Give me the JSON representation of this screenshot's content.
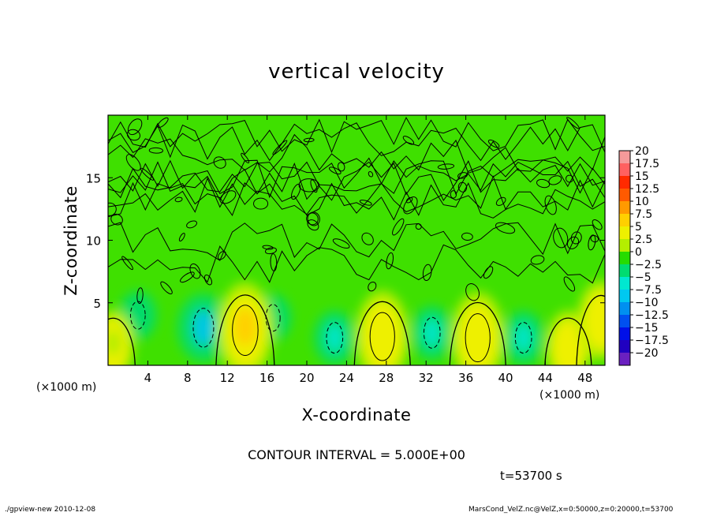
{
  "chart_data": {
    "type": "heatmap",
    "title": "vertical velocity",
    "xlabel": "X-coordinate",
    "ylabel": "Z-coordinate",
    "x_unit_left": "(×1000 m)",
    "x_unit_right": "(×1000 m)",
    "xlim": [
      0,
      50
    ],
    "ylim": [
      0,
      20
    ],
    "x_ticks": [
      4,
      8,
      12,
      16,
      20,
      24,
      28,
      32,
      36,
      40,
      44,
      48
    ],
    "y_ticks": [
      5,
      10,
      15
    ],
    "colorbar": {
      "levels": [
        20,
        17.5,
        15,
        12.5,
        10,
        7.5,
        5,
        2.5,
        0,
        -2.5,
        -5,
        -7.5,
        -10,
        -12.5,
        -15,
        -17.5,
        -20
      ],
      "labels": [
        "20",
        "17.5",
        "15",
        "12.5",
        "10",
        "7.5",
        "5",
        "2.5",
        "0",
        "−2.5",
        "−5",
        "−7.5",
        "−10",
        "−12.5",
        "−15",
        "−17.5",
        "−20"
      ],
      "colors": [
        "#f59a9a",
        "#ff6060",
        "#ff2a00",
        "#ff5a00",
        "#ff9a00",
        "#ffd000",
        "#eef000",
        "#b4ee00",
        "#26dc00",
        "#00dc70",
        "#00e8d0",
        "#00c8f0",
        "#0090f0",
        "#0050f0",
        "#0010e8",
        "#2000c0",
        "#6a20c0"
      ]
    },
    "background_color": "#3fe000",
    "updrafts": [
      {
        "x": 0.5,
        "z": 1.6,
        "w": 3.5
      },
      {
        "x": 13.8,
        "z": 2.8,
        "w": 6.5
      },
      {
        "x": 27.6,
        "z": 2.3,
        "w": 6.0
      },
      {
        "x": 37.2,
        "z": 2.2,
        "w": 6.0
      },
      {
        "x": 46.3,
        "z": 1.4,
        "w": 4.0
      },
      {
        "x": 49.6,
        "z": 3.6,
        "w": 4.5
      }
    ],
    "downdrafts": [
      {
        "x": 3.0,
        "z": 4.0,
        "w": -2.5
      },
      {
        "x": 9.6,
        "z": 3.0,
        "w": -8.0
      },
      {
        "x": 22.8,
        "z": 2.2,
        "w": -4.0
      },
      {
        "x": 32.6,
        "z": 2.6,
        "w": -4.0
      },
      {
        "x": 41.8,
        "z": 2.2,
        "w": -4.0
      },
      {
        "x": 16.6,
        "z": 3.8,
        "w": -2.0
      }
    ],
    "contour_interval_text": "CONTOUR INTERVAL = 5.000E+00",
    "time_text": "t=53700 s"
  },
  "footer": {
    "left": "./gpview-new  2010-12-08",
    "right": "MarsCond_VelZ.nc@VelZ,x=0:50000,z=0:20000,t=53700"
  }
}
